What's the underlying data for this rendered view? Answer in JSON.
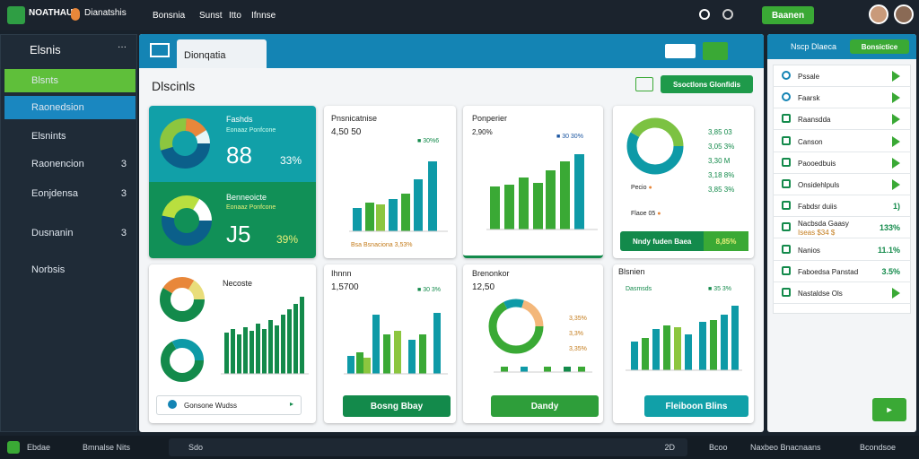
{
  "top_bar": {
    "brand": "NOATHAUI",
    "brand_sub": "Dianatshis",
    "nav": [
      "Bonsnia",
      "Sunst",
      "Itto",
      "Ifnnse"
    ],
    "button": "Baanen"
  },
  "sidebar": {
    "title": "Elsnis",
    "items": [
      {
        "label": "Blsnts"
      },
      {
        "label": "Raonedsion"
      },
      {
        "label": "Elsnints"
      },
      {
        "label": "Raonencion",
        "count": "3"
      },
      {
        "label": "Eonjdensa",
        "count": "3"
      },
      {
        "label": "Dusnanin",
        "count": "3"
      },
      {
        "label": "Norbsis"
      }
    ]
  },
  "main": {
    "tab": "Dionqatia",
    "heading": "Dlscinls",
    "action": "Ssoctlons Glonfidis",
    "cards": [
      {
        "title": "Fashds",
        "subtitle": "Eonaaz Ponfcone",
        "value": "88",
        "change": "33%",
        "title2": "Benneoicte",
        "subtitle2": "Eonaaz Ponfcone",
        "value2": "J5",
        "change2": "39%"
      },
      {
        "title": "Pnsnicatnise",
        "value": "4,50 50",
        "legend": "30%6",
        "footer": "Bsa Bsnaciona 3,53%"
      },
      {
        "title": "Ponperier",
        "value": "2,90%",
        "legend": "30 30%"
      },
      {
        "legend": [
          "3,85 03",
          "3,05 3%",
          "3,30 M",
          "3,18 8%",
          "3,85 3%"
        ],
        "labels": [
          "Pecio",
          "Flaoe 05"
        ],
        "footer": "Nndy fuden Baea",
        "footer_value": "8,85%"
      },
      {
        "title": "Necoste",
        "input": "Gonsone Wudss"
      },
      {
        "title": "Ihnnn",
        "value": "1,5700",
        "legend": "30 3%",
        "button": "Bosng Bbay"
      },
      {
        "title": "Brenonkor",
        "value": "12,50",
        "legend": [
          "3,35%",
          "3,3%",
          "3,35%"
        ],
        "button": "Dandy"
      },
      {
        "title": "Blsnien",
        "legend": "Dasmsds",
        "legend2": "35 3%",
        "button": "Fleiboon Blins"
      }
    ]
  },
  "right_panel": {
    "title": "Nscp Dlaeca",
    "button": "Bonsictice",
    "items": [
      {
        "label": "Pssale"
      },
      {
        "label": "Faarsk"
      },
      {
        "label": "Raansdda"
      },
      {
        "label": "Canson"
      },
      {
        "label": "Paooedbuis"
      },
      {
        "label": "Onsidehlpuls"
      },
      {
        "label": "Fabdsr duiis",
        "value": "1)"
      },
      {
        "label": "Nacbsda Gaasy",
        "sub": "Iseas $34 $",
        "value": "133%"
      },
      {
        "label": "Nanios",
        "value": "11.1%"
      },
      {
        "label": "Faboedsa Panstad",
        "value": "3.5%"
      },
      {
        "label": "Nastaldse Ols"
      }
    ]
  },
  "bottom_bar": {
    "left": "Ebdae",
    "left2": "Bmnalse Nits",
    "search": "Sdo",
    "search_hint": "2D",
    "items": [
      "Bcoo",
      "Naxbeo Bnacnaans",
      "Bcondsoe"
    ]
  }
}
